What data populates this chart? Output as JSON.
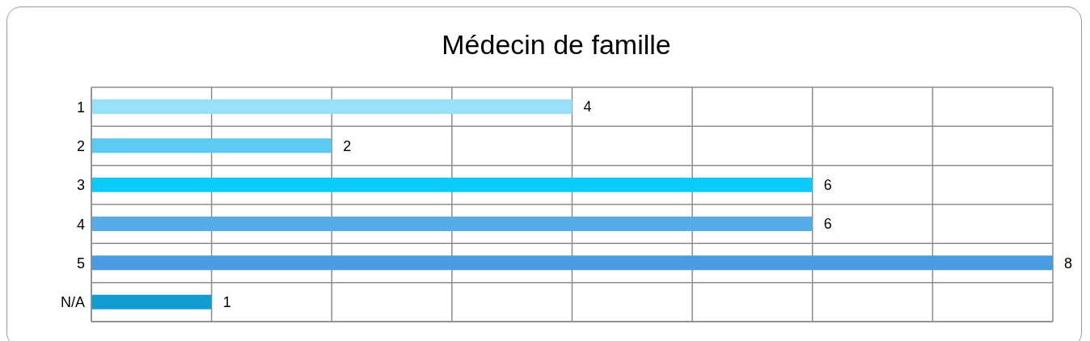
{
  "chart_data": {
    "type": "bar",
    "orientation": "horizontal",
    "title": "Médecin de famille",
    "categories": [
      "1",
      "2",
      "3",
      "4",
      "5",
      "N/A"
    ],
    "values": [
      4,
      2,
      6,
      6,
      8,
      1
    ],
    "colors": [
      "#99e1f9",
      "#5ccaf1",
      "#0ccbfa",
      "#57abe7",
      "#4a9be1",
      "#139ccf"
    ],
    "xlim": [
      0,
      8
    ],
    "xticks": [
      {
        "value": 0,
        "label": null
      },
      {
        "value": 1,
        "label": null
      },
      {
        "value": 2,
        "label": null
      },
      {
        "value": 3,
        "label": null
      },
      {
        "value": 4,
        "label": null
      },
      {
        "value": 5,
        "label": null
      },
      {
        "value": 6,
        "label": null
      },
      {
        "value": 7,
        "label": null
      },
      {
        "value": 8,
        "label": null
      }
    ],
    "tick_labels": "y",
    "grid": true,
    "data_labels": true,
    "legend": false
  }
}
